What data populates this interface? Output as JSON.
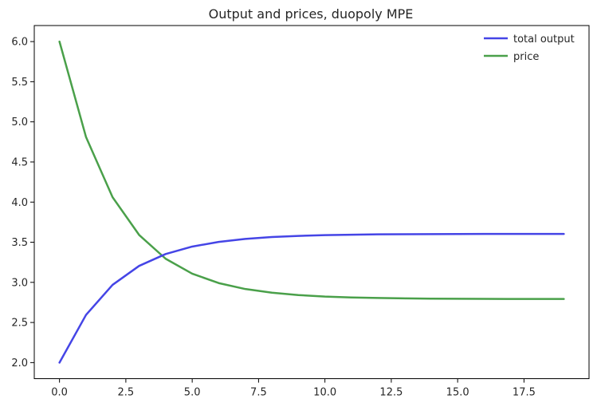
{
  "chart_data": {
    "type": "line",
    "title": "Output and prices, duopoly MPE",
    "xlabel": "",
    "ylabel": "",
    "x": [
      0,
      1,
      2,
      3,
      4,
      5,
      6,
      7,
      8,
      9,
      10,
      11,
      12,
      13,
      14,
      15,
      16,
      17,
      18,
      19
    ],
    "series": [
      {
        "name": "total output",
        "color": "#4545e6",
        "values": [
          2.0,
          2.595,
          2.969,
          3.205,
          3.353,
          3.446,
          3.504,
          3.541,
          3.565,
          3.579,
          3.588,
          3.594,
          3.598,
          3.6,
          3.601,
          3.602,
          3.603,
          3.603,
          3.604,
          3.604
        ]
      },
      {
        "name": "price",
        "color": "#4aa04a",
        "values": [
          6.0,
          4.81,
          4.061,
          3.591,
          3.294,
          3.108,
          2.991,
          2.917,
          2.871,
          2.842,
          2.823,
          2.812,
          2.805,
          2.8,
          2.797,
          2.795,
          2.794,
          2.793,
          2.793,
          2.793
        ]
      }
    ],
    "xlim": [
      -0.95,
      19.95
    ],
    "ylim": [
      1.8,
      6.2
    ],
    "x_ticks": {
      "values": [
        0,
        2.5,
        5,
        7.5,
        10,
        12.5,
        15,
        17.5
      ],
      "labels": [
        "0.0",
        "2.5",
        "5.0",
        "7.5",
        "10.0",
        "12.5",
        "15.0",
        "17.5"
      ]
    },
    "y_ticks": {
      "values": [
        2,
        2.5,
        3,
        3.5,
        4,
        4.5,
        5,
        5.5,
        6
      ],
      "labels": [
        "2.0",
        "2.5",
        "3.0",
        "3.5",
        "4.0",
        "4.5",
        "5.0",
        "5.5",
        "6.0"
      ]
    },
    "grid": false,
    "legend_position": "upper right",
    "line_width": 2.5,
    "axis_color": "#000000",
    "background": "#ffffff"
  }
}
